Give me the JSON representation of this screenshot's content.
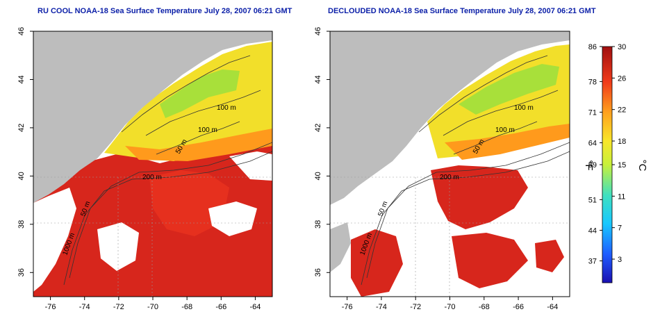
{
  "titles": {
    "left": "RU COOL NOAA-18 Sea Surface Temperature July 28, 2007 06:21 GMT",
    "right": "DECLOUDED NOAA-18 Sea Surface Temperature July 28, 2007 06:21 GMT"
  },
  "axes": {
    "lon_ticks": [
      "-76",
      "-74",
      "-72",
      "-70",
      "-68",
      "-66",
      "-64"
    ],
    "lat_ticks": [
      "36",
      "38",
      "40",
      "42",
      "44",
      "46"
    ],
    "lon_range": [
      -77,
      -63
    ],
    "lat_range": [
      35,
      46
    ]
  },
  "contour_labels": {
    "left": [
      "100 m",
      "100 m",
      "50 m",
      "200 m",
      "50 m",
      "1000 m"
    ],
    "right": [
      "100 m",
      "100 m",
      "50 m",
      "200 m",
      "50 m",
      "1000 m"
    ]
  },
  "colorbar": {
    "fahrenheit_ticks": [
      "86",
      "78",
      "71",
      "64",
      "59",
      "51",
      "44",
      "37"
    ],
    "celsius_ticks": [
      "30",
      "26",
      "22",
      "18",
      "15",
      "11",
      "7",
      "3"
    ],
    "fahrenheit_unit": "°F",
    "celsius_unit": "°C",
    "celsius_range": [
      0,
      30
    ]
  },
  "colors": {
    "land": "#bdbdbd",
    "cloud": "#ffffff",
    "title": "#0b1fa8",
    "warm": "#d7191c",
    "cool": "#f2e02a",
    "grid": "#999999"
  }
}
